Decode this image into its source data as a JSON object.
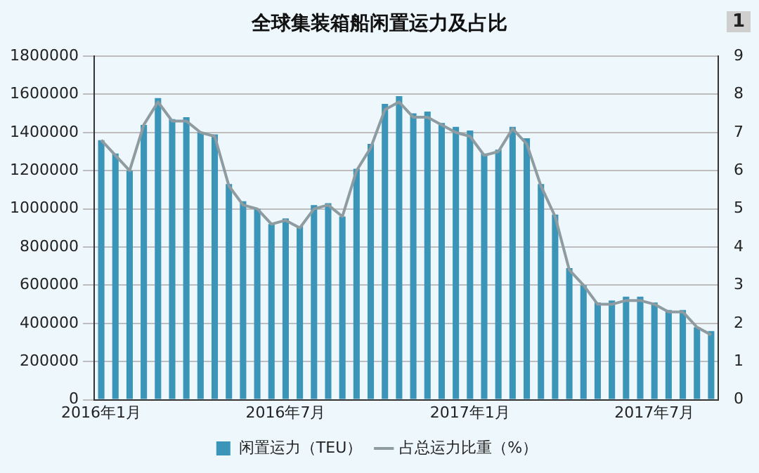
{
  "chart_data": {
    "type": "bar",
    "title": "全球集装箱船闲置运力及占比",
    "annotations": [
      "1"
    ],
    "categories": [
      "2016年1月",
      null,
      null,
      null,
      null,
      null,
      null,
      null,
      null,
      null,
      null,
      null,
      null,
      "2016年7月",
      null,
      null,
      null,
      null,
      null,
      null,
      null,
      null,
      null,
      null,
      null,
      null,
      "2017年1月",
      null,
      null,
      null,
      null,
      null,
      null,
      null,
      null,
      null,
      null,
      null,
      null,
      "2017年7月",
      null,
      null,
      null,
      null
    ],
    "series": [
      {
        "name": "闲置运力（TEU）",
        "color": "#3a95b8",
        "values": [
          1360000,
          1290000,
          1200000,
          1440000,
          1580000,
          1470000,
          1480000,
          1400000,
          1390000,
          1130000,
          1040000,
          1000000,
          920000,
          950000,
          910000,
          1020000,
          1030000,
          960000,
          1210000,
          1340000,
          1550000,
          1590000,
          1500000,
          1510000,
          1450000,
          1430000,
          1410000,
          1290000,
          1310000,
          1430000,
          1370000,
          1130000,
          970000,
          690000,
          600000,
          510000,
          520000,
          540000,
          540000,
          510000,
          470000,
          470000,
          380000,
          360000
        ]
      },
      {
        "name": "占总运力比重（%）",
        "type": "line",
        "axis": "y2",
        "color": "#8e9ba1",
        "values": [
          6.8,
          6.4,
          6.0,
          7.2,
          7.8,
          7.3,
          7.3,
          7.0,
          6.9,
          5.6,
          5.1,
          5.0,
          4.6,
          4.7,
          4.5,
          5.0,
          5.1,
          4.8,
          6.0,
          6.6,
          7.6,
          7.8,
          7.4,
          7.4,
          7.2,
          7.0,
          6.9,
          6.4,
          6.5,
          7.1,
          6.7,
          5.6,
          4.8,
          3.4,
          3.0,
          2.5,
          2.5,
          2.6,
          2.6,
          2.5,
          2.3,
          2.3,
          1.9,
          1.7
        ]
      }
    ],
    "ylim": [
      0,
      1800000
    ],
    "yticks": [
      0,
      200000,
      400000,
      600000,
      800000,
      1000000,
      1200000,
      1400000,
      1600000,
      1800000
    ],
    "y2lim": [
      0,
      9
    ],
    "y2ticks": [
      0,
      1,
      2,
      3,
      4,
      5,
      6,
      7,
      8,
      9
    ],
    "grid": "y",
    "legend": "bottom",
    "marker": "none",
    "line_style": "solid"
  }
}
